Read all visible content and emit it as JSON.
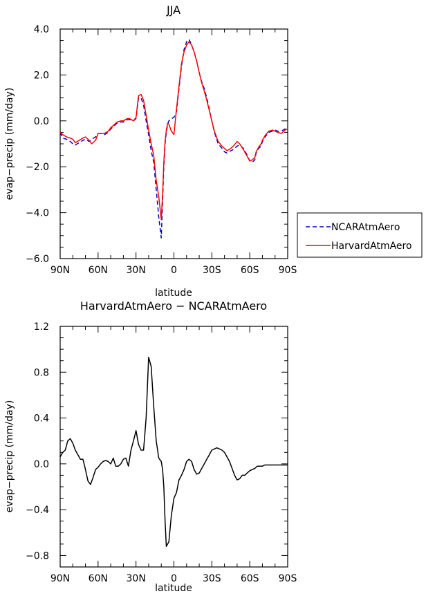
{
  "chart_data": [
    {
      "type": "line",
      "title": "JJA",
      "xlabel": "latitude",
      "ylabel": "evap−precip (mm/day)",
      "xlim": [
        -90,
        90
      ],
      "ylim": [
        -6.0,
        4.0
      ],
      "x_ticks": [
        -90,
        -60,
        -30,
        0,
        30,
        60,
        90
      ],
      "x_tick_labels": [
        "90N",
        "60N",
        "30N",
        "0",
        "30S",
        "60S",
        "90S"
      ],
      "y_ticks": [
        -6,
        -4,
        -2,
        0,
        2,
        4
      ],
      "y_tick_labels": [
        "−6.0",
        "−4.0",
        "−2.0",
        "0.0",
        "2.0",
        "4.0"
      ],
      "legend_position": "outside-right",
      "grid": false,
      "series": [
        {
          "name": "NCARAtmAero",
          "color": "#0000cc",
          "dash": "dashed",
          "x": [
            -90,
            -88,
            -85,
            -82,
            -80,
            -78,
            -75,
            -72,
            -70,
            -67,
            -65,
            -62,
            -60,
            -57,
            -55,
            -52,
            -50,
            -47,
            -45,
            -42,
            -40,
            -37,
            -35,
            -32,
            -30,
            -28,
            -26,
            -24,
            -22,
            -20,
            -18,
            -16,
            -14,
            -12,
            -10,
            -9,
            -8,
            -7,
            -6,
            -5,
            -4,
            -3,
            -2,
            0,
            2,
            4,
            6,
            8,
            10,
            12,
            14,
            16,
            18,
            20,
            22,
            24,
            26,
            28,
            30,
            32,
            35,
            38,
            40,
            42,
            45,
            47,
            50,
            52,
            55,
            58,
            60,
            62,
            64,
            65,
            67,
            69,
            70,
            72,
            75,
            78,
            80,
            82,
            85,
            88,
            90
          ],
          "y": [
            -0.5,
            -0.75,
            -0.8,
            -0.9,
            -1.0,
            -1.05,
            -0.95,
            -0.85,
            -0.8,
            -0.9,
            -0.8,
            -0.7,
            -0.55,
            -0.55,
            -0.6,
            -0.5,
            -0.35,
            -0.2,
            -0.1,
            -0.05,
            -0.05,
            0.05,
            0.05,
            0.0,
            0.1,
            1.0,
            1.0,
            0.7,
            0.0,
            -0.6,
            -1.3,
            -1.8,
            -3.0,
            -4.2,
            -5.1,
            -3.5,
            -2.0,
            -1.0,
            -0.5,
            -0.15,
            0.0,
            0.05,
            0.1,
            0.15,
            0.4,
            1.4,
            2.4,
            3.1,
            3.45,
            3.55,
            3.3,
            3.0,
            2.6,
            2.1,
            1.7,
            1.4,
            1.0,
            0.5,
            0.0,
            -0.5,
            -1.0,
            -1.2,
            -1.35,
            -1.4,
            -1.3,
            -1.25,
            -1.1,
            -1.05,
            -1.2,
            -1.5,
            -1.75,
            -1.8,
            -1.7,
            -1.4,
            -1.2,
            -1.1,
            -0.9,
            -0.7,
            -0.5,
            -0.45,
            -0.4,
            -0.45,
            -0.45,
            -0.35,
            -0.35
          ]
        },
        {
          "name": "HarvardAtmAero",
          "color": "#ff0000",
          "dash": "solid",
          "x": [
            -90,
            -88,
            -85,
            -82,
            -80,
            -78,
            -75,
            -72,
            -70,
            -67,
            -65,
            -62,
            -60,
            -57,
            -55,
            -52,
            -50,
            -47,
            -45,
            -42,
            -40,
            -37,
            -35,
            -32,
            -30,
            -28,
            -26,
            -24,
            -22,
            -20,
            -18,
            -16,
            -14,
            -12,
            -10,
            -9,
            -8,
            -7,
            -6,
            -5,
            -4,
            -3,
            -2,
            0,
            2,
            4,
            6,
            8,
            10,
            12,
            14,
            16,
            18,
            20,
            22,
            24,
            26,
            28,
            30,
            32,
            35,
            38,
            40,
            42,
            45,
            47,
            50,
            52,
            55,
            58,
            60,
            62,
            64,
            65,
            67,
            69,
            70,
            72,
            75,
            78,
            80,
            82,
            85,
            88,
            90
          ],
          "y": [
            -0.5,
            -0.6,
            -0.7,
            -0.75,
            -0.8,
            -0.95,
            -0.85,
            -0.75,
            -0.7,
            -0.85,
            -1.0,
            -0.85,
            -0.55,
            -0.55,
            -0.55,
            -0.45,
            -0.3,
            -0.15,
            -0.05,
            0.0,
            0.0,
            0.1,
            0.1,
            0.0,
            0.15,
            1.1,
            1.15,
            0.9,
            0.25,
            -0.4,
            -1.0,
            -1.5,
            -2.6,
            -3.3,
            -4.3,
            -3.2,
            -1.8,
            -0.9,
            -0.4,
            -0.1,
            -0.15,
            -0.3,
            -0.45,
            -0.6,
            0.5,
            1.5,
            2.5,
            3.0,
            3.3,
            3.45,
            3.3,
            3.0,
            2.6,
            2.1,
            1.65,
            1.3,
            0.9,
            0.45,
            0.0,
            -0.45,
            -0.9,
            -1.1,
            -1.2,
            -1.3,
            -1.2,
            -1.1,
            -0.9,
            -1.0,
            -1.25,
            -1.55,
            -1.75,
            -1.7,
            -1.6,
            -1.35,
            -1.15,
            -1.0,
            -0.85,
            -0.65,
            -0.45,
            -0.4,
            -0.45,
            -0.5,
            -0.55,
            -0.4,
            -0.35
          ]
        }
      ]
    },
    {
      "type": "line",
      "title": "HarvardAtmAero − NCARAtmAero",
      "xlabel": "latitude",
      "ylabel": "evap−precip (mm/day)",
      "xlim": [
        -90,
        90
      ],
      "ylim": [
        -0.9,
        1.2
      ],
      "x_ticks": [
        -90,
        -60,
        -30,
        0,
        30,
        60,
        90
      ],
      "x_tick_labels": [
        "90N",
        "60N",
        "30N",
        "0",
        "30S",
        "60S",
        "90S"
      ],
      "y_ticks": [
        -0.8,
        -0.4,
        0.0,
        0.4,
        0.8,
        1.2
      ],
      "y_tick_labels": [
        "−0.8",
        "−0.4",
        "0.0",
        "0.4",
        "0.8",
        "1.2"
      ],
      "grid": false,
      "series": [
        {
          "color": "#000000",
          "dash": "solid",
          "x": [
            -90,
            -88,
            -86,
            -84,
            -82,
            -80,
            -78,
            -76,
            -74,
            -72,
            -70,
            -68,
            -66,
            -64,
            -62,
            -60,
            -58,
            -56,
            -54,
            -52,
            -50,
            -48,
            -46,
            -44,
            -42,
            -40,
            -38,
            -36,
            -34,
            -32,
            -30,
            -28,
            -26,
            -24,
            -22,
            -20,
            -18,
            -16,
            -14,
            -12,
            -10,
            -9,
            -8,
            -7,
            -6,
            -4,
            -2,
            0,
            2,
            4,
            6,
            8,
            10,
            12,
            14,
            16,
            18,
            20,
            22,
            24,
            26,
            28,
            30,
            32,
            34,
            36,
            38,
            40,
            42,
            44,
            46,
            48,
            50,
            52,
            54,
            56,
            58,
            60,
            62,
            64,
            66,
            68,
            70,
            72,
            74,
            76,
            78,
            80,
            82,
            84,
            86,
            88,
            90
          ],
          "y": [
            0.06,
            0.1,
            0.12,
            0.2,
            0.22,
            0.18,
            0.12,
            0.08,
            0.04,
            0.04,
            -0.05,
            -0.15,
            -0.18,
            -0.12,
            -0.05,
            -0.03,
            0.0,
            0.02,
            0.03,
            0.02,
            0.0,
            0.05,
            -0.02,
            -0.02,
            0.0,
            0.04,
            0.05,
            -0.02,
            0.12,
            0.2,
            0.29,
            0.17,
            0.12,
            0.12,
            0.4,
            0.93,
            0.85,
            0.5,
            0.2,
            0.05,
            0.02,
            -0.05,
            -0.2,
            -0.5,
            -0.72,
            -0.68,
            -0.45,
            -0.3,
            -0.25,
            -0.14,
            -0.1,
            -0.05,
            0.02,
            0.04,
            0.02,
            -0.05,
            -0.09,
            -0.08,
            -0.04,
            0.0,
            0.04,
            0.08,
            0.12,
            0.13,
            0.14,
            0.13,
            0.12,
            0.1,
            0.06,
            0.02,
            -0.04,
            -0.1,
            -0.14,
            -0.13,
            -0.1,
            -0.1,
            -0.08,
            -0.06,
            -0.05,
            -0.04,
            -0.02,
            -0.02,
            -0.02,
            -0.01,
            -0.01,
            -0.01,
            -0.01,
            -0.01,
            -0.01,
            -0.01,
            -0.01,
            -0.01,
            -0.01
          ]
        }
      ]
    }
  ]
}
